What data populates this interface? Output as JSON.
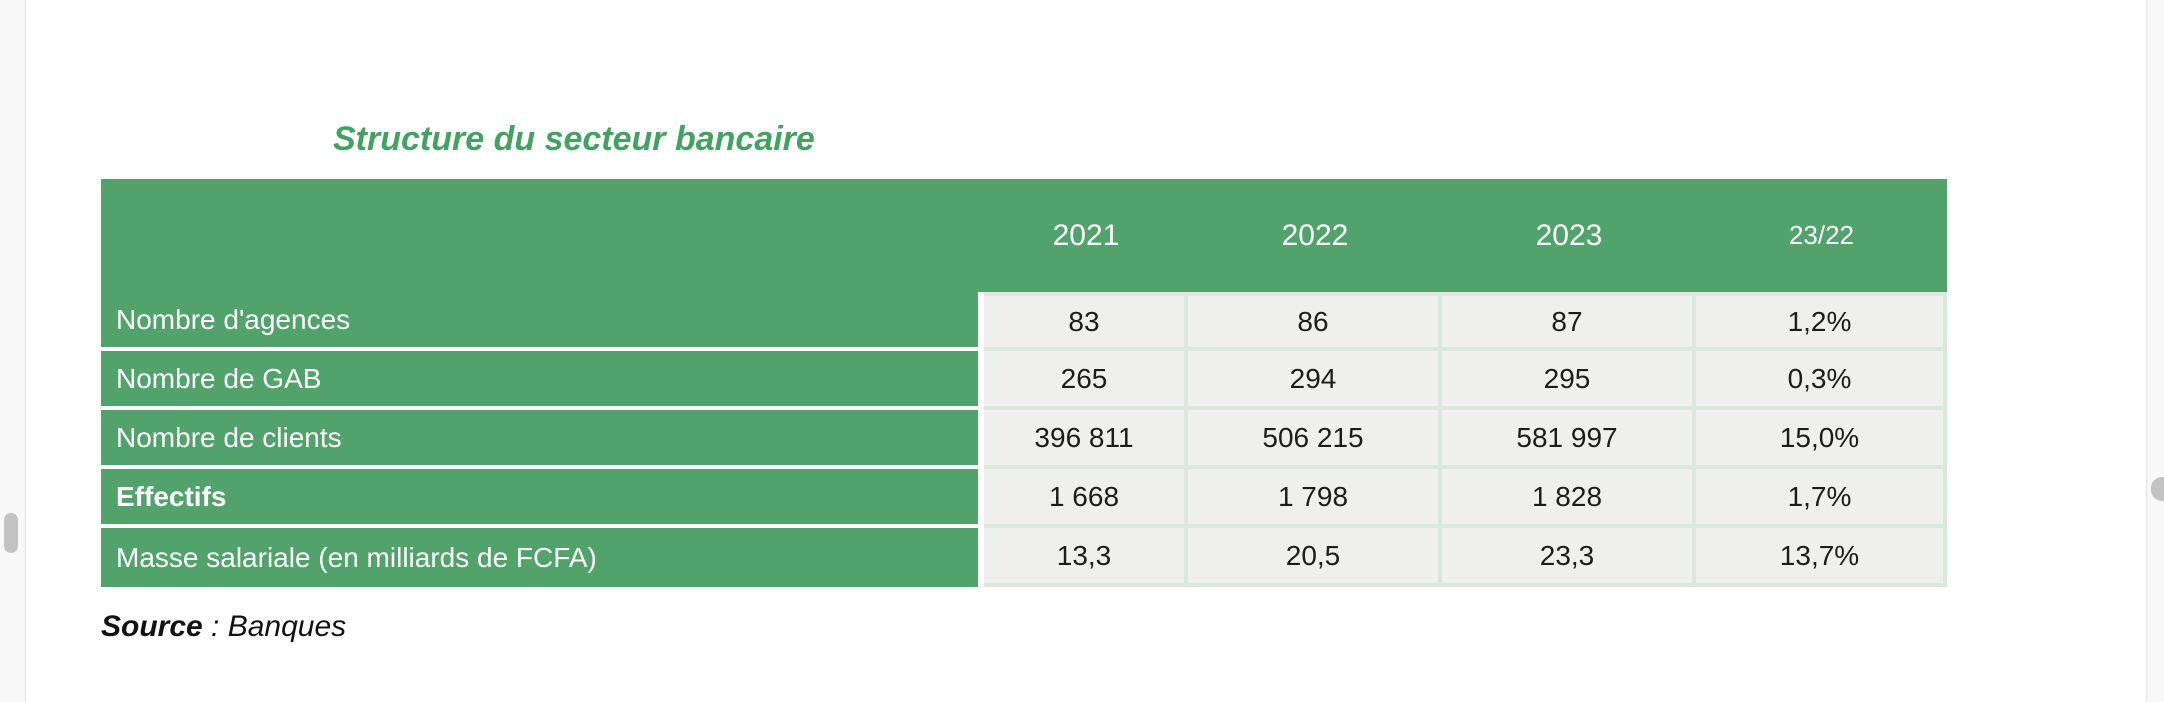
{
  "title": "Structure du secteur bancaire",
  "table": {
    "columns": [
      "2021",
      "2022",
      "2023",
      "23/22"
    ],
    "rows": [
      {
        "label": "Nombre d'agences",
        "bold": false,
        "values": [
          "83",
          "86",
          "87",
          "1,2%"
        ]
      },
      {
        "label": "Nombre de GAB",
        "bold": false,
        "values": [
          "265",
          "294",
          "295",
          "0,3%"
        ]
      },
      {
        "label": "Nombre de clients",
        "bold": false,
        "values": [
          "396 811",
          "506 215",
          "581 997",
          "15,0%"
        ]
      },
      {
        "label": "Effectifs",
        "bold": true,
        "values": [
          "1 668",
          "1 798",
          "1 828",
          "1,7%"
        ]
      },
      {
        "label": "Masse salariale (en milliards de FCFA)",
        "bold": false,
        "values": [
          "13,3",
          "20,5",
          "23,3",
          "13,7%"
        ]
      }
    ]
  },
  "source": {
    "prefix": "Source",
    "rest": " : Banques"
  },
  "colors": {
    "table_green": "#51a26b",
    "title_green": "#43a262",
    "cell_bg": "#efefee",
    "cell_separator": "#dae8dd",
    "rail_bg": "#f8f8f8",
    "scroll_thumb": "#c3c3c3"
  }
}
